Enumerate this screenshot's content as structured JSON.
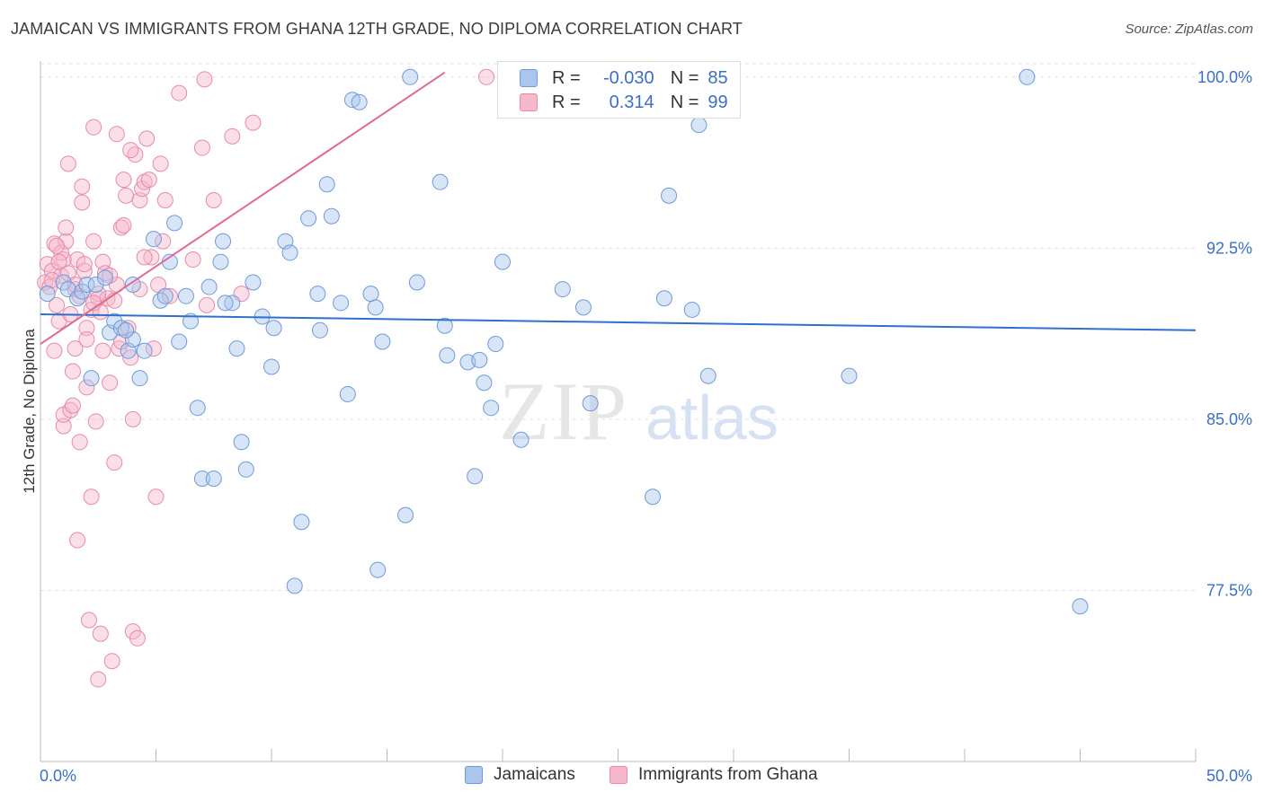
{
  "title": "JAMAICAN VS IMMIGRANTS FROM GHANA 12TH GRADE, NO DIPLOMA CORRELATION CHART",
  "source": "Source: ZipAtlas.com",
  "watermark": {
    "zip": "ZIP",
    "atlas": "atlas"
  },
  "legend_top": {
    "r_label": "R =",
    "n_label": "N =",
    "rows": [
      {
        "r": "-0.030",
        "n": "85"
      },
      {
        "r": "0.314",
        "n": "99"
      }
    ]
  },
  "legend_bottom": [
    "Jamaicans",
    "Immigrants from Ghana"
  ],
  "colors": {
    "blue_fill": "#a9c6ee",
    "blue_stroke": "#6f9ad9",
    "blue_line": "#2f6fce",
    "pink_fill": "#f6b9cc",
    "pink_stroke": "#e88aa8",
    "pink_line": "#e06a92",
    "tick_label": "#3b6fc4",
    "grid": "#e3e3e3"
  },
  "chart_data": {
    "type": "scatter",
    "xlabel": "",
    "ylabel": "12th Grade, No Diploma",
    "xlim": [
      0,
      50
    ],
    "ylim": [
      70,
      100.7
    ],
    "x_tick_labels": [
      "0.0%",
      "50.0%"
    ],
    "y_ticks": [
      77.5,
      85.0,
      92.5,
      100.0
    ],
    "y_tick_labels": [
      "77.5%",
      "85.0%",
      "92.5%",
      "100.0%"
    ],
    "grid": true,
    "legend_placement": "top-center",
    "series": [
      {
        "name": "Jamaicans",
        "trend": {
          "x": [
            0,
            50
          ],
          "y": [
            89.6,
            88.9
          ]
        },
        "points": [
          [
            0.3,
            90.5
          ],
          [
            1.0,
            91.0
          ],
          [
            1.2,
            90.7
          ],
          [
            1.6,
            90.3
          ],
          [
            1.8,
            90.6
          ],
          [
            2.0,
            90.9
          ],
          [
            2.2,
            86.8
          ],
          [
            2.4,
            90.9
          ],
          [
            2.8,
            91.2
          ],
          [
            3.0,
            88.8
          ],
          [
            3.2,
            89.3
          ],
          [
            3.5,
            89.0
          ],
          [
            3.8,
            88.0
          ],
          [
            4.0,
            90.9
          ],
          [
            4.0,
            88.5
          ],
          [
            4.3,
            86.8
          ],
          [
            4.5,
            88.0
          ],
          [
            4.9,
            92.9
          ],
          [
            5.2,
            90.2
          ],
          [
            5.4,
            90.4
          ],
          [
            5.6,
            91.9
          ],
          [
            5.8,
            93.6
          ],
          [
            6.0,
            88.4
          ],
          [
            6.3,
            90.4
          ],
          [
            6.5,
            89.3
          ],
          [
            6.8,
            85.5
          ],
          [
            7.0,
            82.4
          ],
          [
            7.3,
            90.8
          ],
          [
            7.5,
            82.4
          ],
          [
            7.8,
            91.9
          ],
          [
            7.9,
            92.8
          ],
          [
            8.3,
            90.1
          ],
          [
            8.5,
            88.1
          ],
          [
            8.7,
            84.0
          ],
          [
            8.9,
            82.8
          ],
          [
            9.2,
            91.0
          ],
          [
            9.6,
            89.5
          ],
          [
            10.0,
            87.3
          ],
          [
            10.1,
            89.0
          ],
          [
            10.6,
            92.8
          ],
          [
            10.8,
            92.3
          ],
          [
            11.0,
            77.7
          ],
          [
            11.3,
            80.5
          ],
          [
            11.6,
            93.8
          ],
          [
            12.0,
            90.5
          ],
          [
            12.1,
            88.9
          ],
          [
            12.4,
            95.3
          ],
          [
            12.6,
            93.9
          ],
          [
            13.0,
            90.1
          ],
          [
            13.3,
            86.1
          ],
          [
            13.5,
            99.0
          ],
          [
            13.8,
            98.9
          ],
          [
            14.3,
            90.5
          ],
          [
            14.5,
            89.9
          ],
          [
            14.6,
            78.4
          ],
          [
            14.8,
            88.4
          ],
          [
            15.8,
            80.8
          ],
          [
            16.0,
            100.0
          ],
          [
            16.3,
            91.0
          ],
          [
            17.3,
            95.4
          ],
          [
            17.5,
            89.1
          ],
          [
            17.6,
            87.8
          ],
          [
            18.5,
            87.5
          ],
          [
            18.8,
            82.5
          ],
          [
            19.0,
            87.6
          ],
          [
            19.2,
            86.6
          ],
          [
            19.5,
            85.5
          ],
          [
            19.7,
            88.3
          ],
          [
            20.0,
            91.9
          ],
          [
            20.8,
            84.1
          ],
          [
            22.6,
            90.7
          ],
          [
            23.5,
            89.9
          ],
          [
            23.8,
            85.7
          ],
          [
            26.5,
            81.6
          ],
          [
            27.0,
            90.3
          ],
          [
            27.2,
            94.8
          ],
          [
            28.0,
            99.9
          ],
          [
            28.5,
            97.9
          ],
          [
            28.9,
            86.9
          ],
          [
            28.2,
            89.8
          ],
          [
            35.0,
            86.9
          ],
          [
            42.7,
            100.0
          ],
          [
            45.0,
            76.8
          ],
          [
            8.0,
            90.1
          ],
          [
            3.7,
            88.9
          ]
        ]
      },
      {
        "name": "Immigrants from Ghana",
        "trend": {
          "x": [
            0,
            17.5
          ],
          "y": [
            88.3,
            100.2
          ]
        },
        "points": [
          [
            0.2,
            91.0
          ],
          [
            0.3,
            91.8
          ],
          [
            0.4,
            90.8
          ],
          [
            0.5,
            91.5
          ],
          [
            0.6,
            92.7
          ],
          [
            0.6,
            88.0
          ],
          [
            0.7,
            90.0
          ],
          [
            0.8,
            89.3
          ],
          [
            0.9,
            91.3
          ],
          [
            1.0,
            84.7
          ],
          [
            1.0,
            85.2
          ],
          [
            1.1,
            92.8
          ],
          [
            1.1,
            93.4
          ],
          [
            1.2,
            96.2
          ],
          [
            1.2,
            91.4
          ],
          [
            1.3,
            85.4
          ],
          [
            1.4,
            85.6
          ],
          [
            1.4,
            87.1
          ],
          [
            1.5,
            88.1
          ],
          [
            1.5,
            90.7
          ],
          [
            1.6,
            92.0
          ],
          [
            1.6,
            79.7
          ],
          [
            1.7,
            84.0
          ],
          [
            1.8,
            95.2
          ],
          [
            1.8,
            94.5
          ],
          [
            1.9,
            91.5
          ],
          [
            2.0,
            89.0
          ],
          [
            2.0,
            86.4
          ],
          [
            2.1,
            76.2
          ],
          [
            2.2,
            81.6
          ],
          [
            2.3,
            97.8
          ],
          [
            2.3,
            92.8
          ],
          [
            2.4,
            84.9
          ],
          [
            2.5,
            73.6
          ],
          [
            2.5,
            90.3
          ],
          [
            2.6,
            75.6
          ],
          [
            2.7,
            91.9
          ],
          [
            2.8,
            91.4
          ],
          [
            2.9,
            90.3
          ],
          [
            3.0,
            86.6
          ],
          [
            3.1,
            74.4
          ],
          [
            3.2,
            83.1
          ],
          [
            3.2,
            90.2
          ],
          [
            3.3,
            97.5
          ],
          [
            3.4,
            88.1
          ],
          [
            3.5,
            88.4
          ],
          [
            3.5,
            93.4
          ],
          [
            3.6,
            95.5
          ],
          [
            3.7,
            94.8
          ],
          [
            3.8,
            89.0
          ],
          [
            3.9,
            87.7
          ],
          [
            4.0,
            85.0
          ],
          [
            4.0,
            75.7
          ],
          [
            4.1,
            96.6
          ],
          [
            4.2,
            75.4
          ],
          [
            4.3,
            94.6
          ],
          [
            4.4,
            95.1
          ],
          [
            4.5,
            95.4
          ],
          [
            4.6,
            97.3
          ],
          [
            4.7,
            95.5
          ],
          [
            4.8,
            92.1
          ],
          [
            4.9,
            88.1
          ],
          [
            5.0,
            81.6
          ],
          [
            5.1,
            90.9
          ],
          [
            5.2,
            96.2
          ],
          [
            5.3,
            92.8
          ],
          [
            5.4,
            94.6
          ],
          [
            5.6,
            90.4
          ],
          [
            6.0,
            99.3
          ],
          [
            6.6,
            92.0
          ],
          [
            7.0,
            96.9
          ],
          [
            7.1,
            99.9
          ],
          [
            7.2,
            90.0
          ],
          [
            7.5,
            94.6
          ],
          [
            8.3,
            97.4
          ],
          [
            8.7,
            90.5
          ],
          [
            9.2,
            98.0
          ],
          [
            19.3,
            100.0
          ],
          [
            0.5,
            91.1
          ],
          [
            1.0,
            92.0
          ],
          [
            1.5,
            90.9
          ],
          [
            2.2,
            89.8
          ],
          [
            2.7,
            88.0
          ],
          [
            3.3,
            90.9
          ],
          [
            0.9,
            92.3
          ],
          [
            1.3,
            89.6
          ],
          [
            1.9,
            91.8
          ],
          [
            2.5,
            90.5
          ],
          [
            3.0,
            91.3
          ],
          [
            3.6,
            93.5
          ],
          [
            4.5,
            92.1
          ],
          [
            0.7,
            92.6
          ],
          [
            2.0,
            88.5
          ],
          [
            2.6,
            89.7
          ],
          [
            3.9,
            96.8
          ],
          [
            4.3,
            90.7
          ],
          [
            0.8,
            91.9
          ],
          [
            1.7,
            90.4
          ],
          [
            2.3,
            90.1
          ]
        ]
      }
    ]
  }
}
